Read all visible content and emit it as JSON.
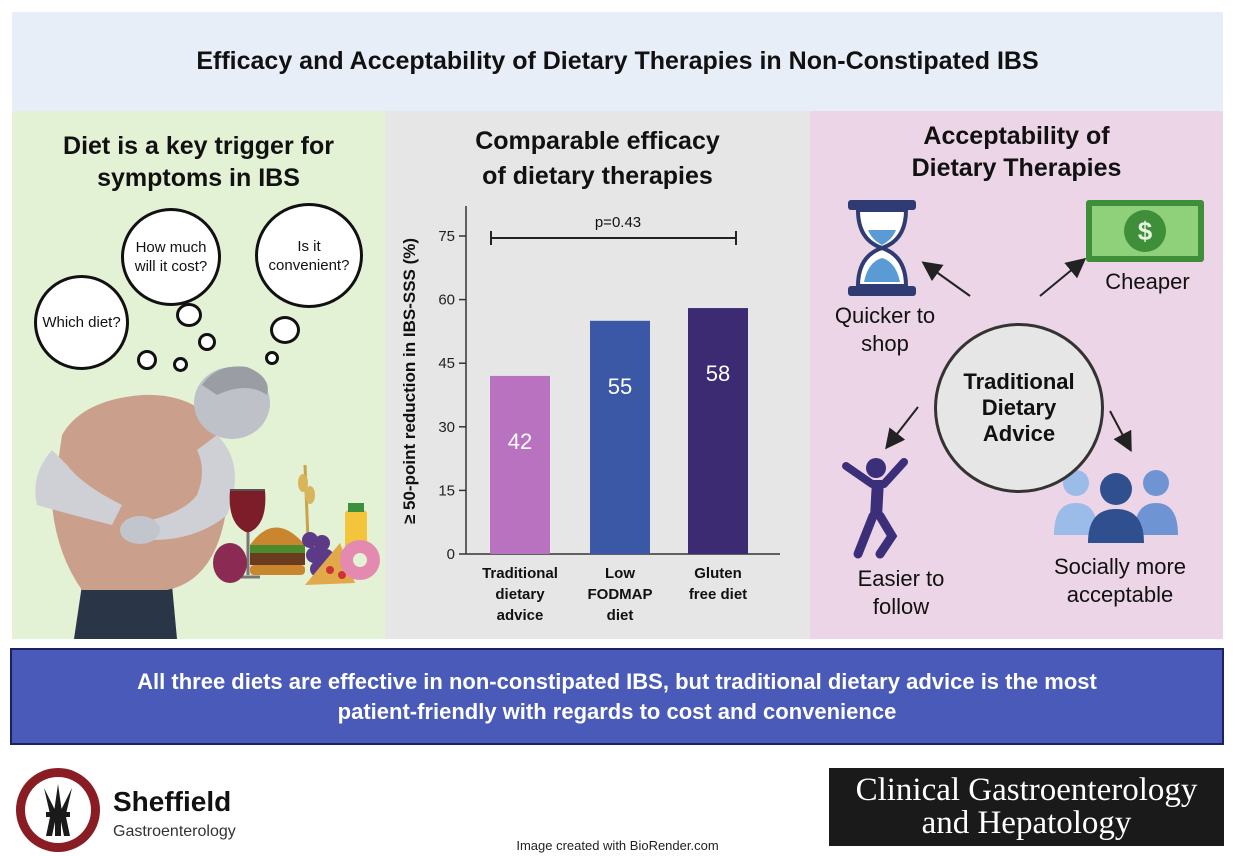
{
  "title": "Efficacy and Acceptability of Dietary Therapies in Non-Constipated IBS",
  "left_panel": {
    "heading_line1": "Diet is a key trigger for",
    "heading_line2": "symptoms in IBS",
    "bubbles": {
      "which": "Which diet?",
      "cost_line1": "How much",
      "cost_line2": "will it cost?",
      "conv_line1": "Is it",
      "conv_line2": "convenient?"
    }
  },
  "mid_panel": {
    "heading_line1": "Comparable efficacy",
    "heading_line2": "of dietary therapies",
    "p_value": "p=0.43"
  },
  "chart_data": {
    "type": "bar",
    "ylabel": "≥ 50-point reduction in IBS-SSS (%)",
    "ylim": [
      0,
      75
    ],
    "yticks": [
      "0",
      "15",
      "30",
      "45",
      "60",
      "75"
    ],
    "categories": [
      [
        "Traditional",
        "dietary",
        "advice"
      ],
      [
        "Low",
        "FODMAP",
        "diet"
      ],
      [
        "Gluten",
        "free diet"
      ]
    ],
    "values": [
      42,
      55,
      58
    ],
    "value_labels": [
      "42",
      "55",
      "58"
    ],
    "colors": [
      "#b872c0",
      "#3a58a6",
      "#3c2a72"
    ],
    "annotation": "p=0.43"
  },
  "right_panel": {
    "heading_line1": "Acceptability of",
    "heading_line2": "Dietary Therapies",
    "center_line1": "Traditional",
    "center_line2": "Dietary",
    "center_line3": "Advice",
    "quicker_line1": "Quicker to",
    "quicker_line2": "shop",
    "cheaper": "Cheaper",
    "easier_line1": "Easier to",
    "easier_line2": "follow",
    "social_line1": "Socially more",
    "social_line2": "acceptable",
    "icons": [
      "hourglass-icon",
      "dollar-bill-icon",
      "person-jumping-icon",
      "people-group-icon"
    ]
  },
  "conclusion": {
    "line1": "All three diets are effective in non-constipated IBS, but traditional dietary advice is the most",
    "line2": "patient-friendly with regards to cost and convenience"
  },
  "footer": {
    "sheffield_name": "Sheffield",
    "sheffield_sub": "Gastroenterology",
    "credit": "Image created with BioRender.com",
    "journal_line1": "Clinical Gastroenterology",
    "journal_line2": "and Hepatology"
  },
  "colors": {
    "title_bg": "#e8eef8",
    "left_bg": "#e3f1d5",
    "mid_bg": "#e6e6e6",
    "right_bg": "#ecd5e6",
    "conclusion_bg": "#4a5ab8"
  }
}
